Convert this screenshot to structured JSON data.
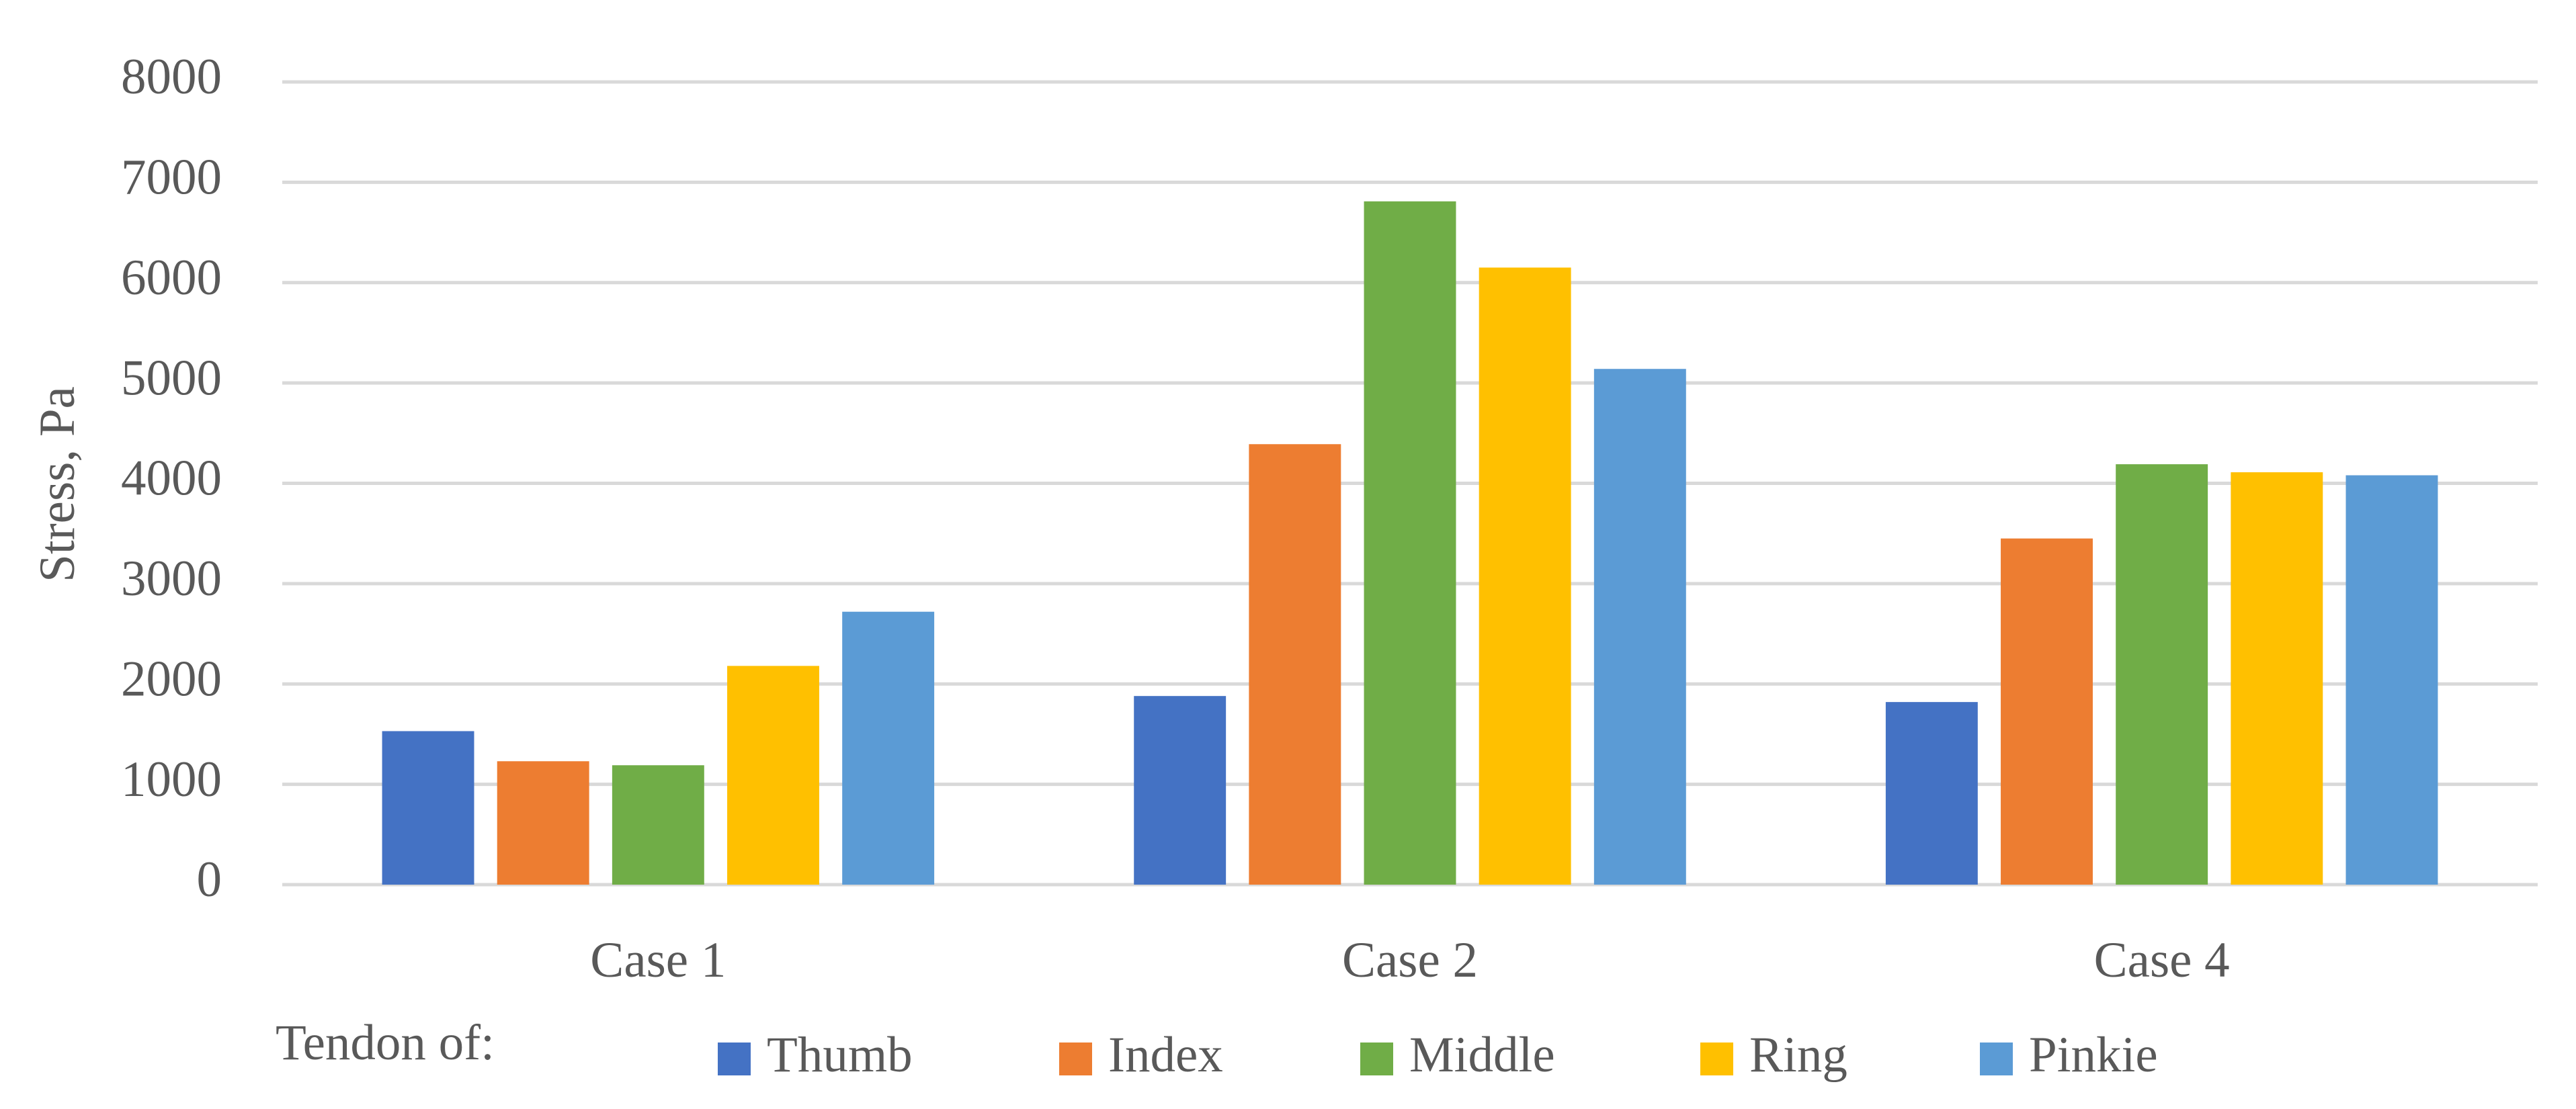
{
  "chart_data": {
    "type": "bar",
    "y_label": "Stress, Pa",
    "categories": [
      "Case 1",
      "Case 2",
      "Case 4"
    ],
    "series": [
      {
        "name": "Thumb",
        "color": "#4472c4",
        "values": [
          1530,
          1880,
          1820
        ]
      },
      {
        "name": "Index",
        "color": "#ed7d31",
        "values": [
          1230,
          4390,
          3450
        ]
      },
      {
        "name": "Middle",
        "color": "#70ad47",
        "values": [
          1190,
          6810,
          4190
        ]
      },
      {
        "name": "Ring",
        "color": "#ffc000",
        "values": [
          2180,
          6150,
          4110
        ]
      },
      {
        "name": "Pinkie",
        "color": "#5b9bd5",
        "values": [
          2720,
          5140,
          4080
        ]
      }
    ],
    "legend_title": "Tendon of:",
    "legend_position": "bottom",
    "ylim": [
      0,
      8000
    ],
    "yticks": [
      0,
      1000,
      2000,
      3000,
      4000,
      5000,
      6000,
      7000,
      8000
    ],
    "grid": true
  }
}
